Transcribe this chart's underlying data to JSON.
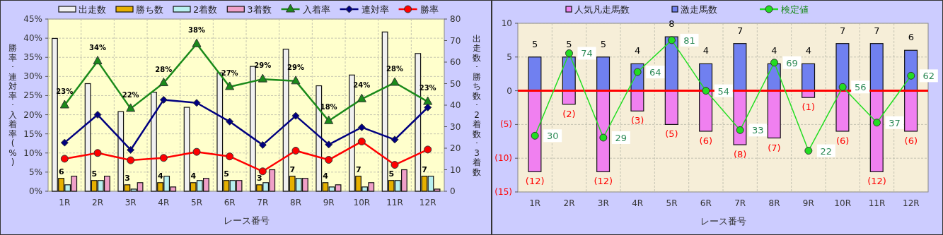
{
  "chart_data": [
    {
      "type": "bar",
      "categories": [
        "1R",
        "2R",
        "3R",
        "4R",
        "5R",
        "6R",
        "7R",
        "8R",
        "9R",
        "10R",
        "11R",
        "12R"
      ],
      "xlabel": "レース番号",
      "ylabel": "勝率･連対率･入着率(%)",
      "y2label": "出走数･勝ち数･2着数･3着数",
      "ylim": [
        0,
        45
      ],
      "yticks": [
        {
          "value": 0,
          "label": "0%"
        },
        {
          "value": 5,
          "label": "5%"
        },
        {
          "value": 10,
          "label": "10%"
        },
        {
          "value": 15,
          "label": "15%"
        },
        {
          "value": 20,
          "label": "20%"
        },
        {
          "value": 25,
          "label": "25%"
        },
        {
          "value": 30,
          "label": "30%"
        },
        {
          "value": 35,
          "label": "35%"
        },
        {
          "value": 40,
          "label": "40%"
        },
        {
          "value": 45,
          "label": "45%"
        }
      ],
      "y2lim": [
        0,
        80
      ],
      "y2ticks": [
        0,
        10,
        20,
        30,
        40,
        50,
        60,
        70,
        80
      ],
      "grid": true,
      "legend": "top",
      "series": [
        {
          "name": "出走数",
          "color": "#f0f0f0",
          "axis": "y2",
          "values": [
            71,
            50,
            37,
            46,
            39,
            55,
            58,
            66,
            49,
            54,
            74,
            64
          ]
        },
        {
          "name": "勝ち数",
          "color": "#e6b000",
          "axis": "y2",
          "values": [
            6,
            5,
            3,
            4,
            4,
            5,
            3,
            7,
            4,
            7,
            5,
            7
          ],
          "value_labels": [
            "6",
            "5",
            "3",
            "4",
            "4",
            "5",
            "3",
            "7",
            "4",
            "7",
            "5",
            "7"
          ]
        },
        {
          "name": "2着数",
          "color": "#b8f0f0",
          "axis": "y2",
          "values": [
            3,
            5,
            1,
            7,
            5,
            5,
            4,
            6,
            2,
            2,
            5,
            7
          ]
        },
        {
          "name": "3着数",
          "color": "#f0a0c8",
          "axis": "y2",
          "values": [
            7,
            7,
            4,
            2,
            6,
            5,
            10,
            6,
            3,
            4,
            10,
            1
          ]
        },
        {
          "name": "入着率",
          "type": "line",
          "color": "#1a8a1a",
          "marker": "triangle",
          "values": [
            22.5,
            34.0,
            21.6,
            28.3,
            38.5,
            27.3,
            29.3,
            28.8,
            18.4,
            24.1,
            28.4,
            23.4
          ],
          "value_labels": [
            "23%",
            "34%",
            "22%",
            "28%",
            "38%",
            "27%",
            "29%",
            "29%",
            "18%",
            "24%",
            "28%",
            "23%"
          ]
        },
        {
          "name": "連対率",
          "type": "line",
          "color": "#000080",
          "marker": "diamond",
          "values": [
            12.7,
            20.0,
            10.8,
            23.9,
            23.1,
            18.2,
            12.1,
            19.7,
            12.2,
            16.7,
            13.5,
            21.9
          ]
        },
        {
          "name": "勝率",
          "type": "line",
          "color": "#ff0000",
          "marker": "circle",
          "values": [
            8.5,
            10.0,
            8.1,
            8.7,
            10.3,
            9.1,
            5.2,
            10.6,
            8.2,
            13.0,
            6.9,
            10.9
          ]
        }
      ]
    },
    {
      "type": "bar",
      "stacked": true,
      "categories": [
        "1R",
        "2R",
        "3R",
        "4R",
        "5R",
        "6R",
        "7R",
        "8R",
        "9R",
        "10R",
        "11R",
        "12R"
      ],
      "xlabel": "レース番号",
      "ylim": [
        -15,
        10
      ],
      "yticks": [
        {
          "value": -15,
          "label": "(15)"
        },
        {
          "value": -10,
          "label": "(10)"
        },
        {
          "value": -5,
          "label": "(5)"
        },
        {
          "value": 0,
          "label": "0"
        },
        {
          "value": 5,
          "label": "5"
        },
        {
          "value": 10,
          "label": "10"
        }
      ],
      "y2lim": [
        0,
        90
      ],
      "grid": true,
      "legend": "top",
      "ref_lines": [
        {
          "axis": "y",
          "value": 0,
          "color": "#ff0000"
        }
      ],
      "series": [
        {
          "name": "人気凡走馬数",
          "color": "#f080f0",
          "values": [
            -12,
            -2,
            -12,
            -3,
            -5,
            -6,
            -8,
            -7,
            -1,
            -6,
            -12,
            -6
          ],
          "value_labels": [
            "(12)",
            "(2)",
            "(12)",
            "(3)",
            "(5)",
            "(6)",
            "(8)",
            "(7)",
            "(1)",
            "(6)",
            "(12)",
            "(6)"
          ]
        },
        {
          "name": "激走馬数",
          "color": "#7080f0",
          "values": [
            5,
            5,
            5,
            4,
            8,
            4,
            7,
            4,
            4,
            7,
            7,
            6
          ],
          "value_labels": [
            "5",
            "5",
            "5",
            "4",
            "8",
            "4",
            "7",
            "4",
            "4",
            "7",
            "7",
            "6"
          ]
        },
        {
          "name": "検定値",
          "type": "line",
          "axis": "y2",
          "color": "#22dd22",
          "marker": "circle",
          "values": [
            30,
            74,
            29,
            64,
            81,
            54,
            33,
            69,
            22,
            56,
            37,
            62
          ],
          "value_labels": [
            "30",
            "74",
            "29",
            "64",
            "81",
            "54",
            "33",
            "69",
            "22",
            "56",
            "37",
            "62"
          ]
        }
      ]
    }
  ]
}
